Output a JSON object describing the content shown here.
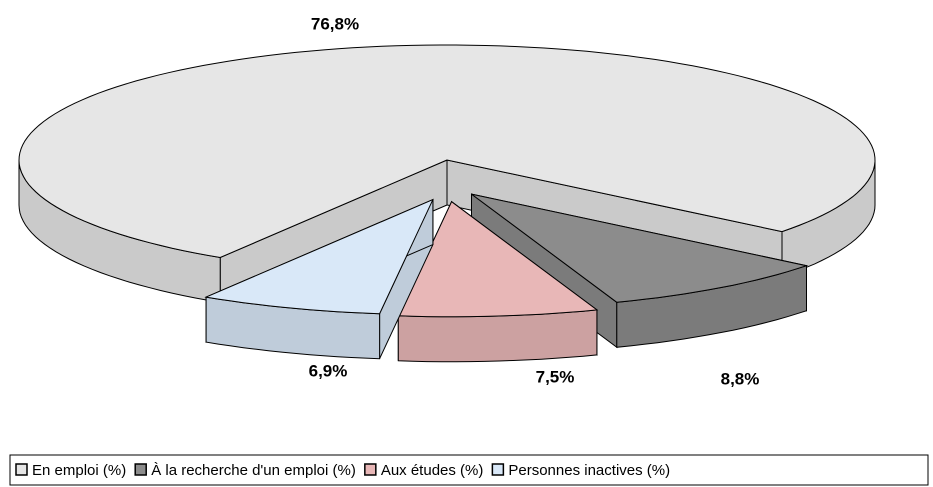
{
  "chart_data": {
    "type": "pie3d",
    "categories": [
      "En emploi (%)",
      "À la recherche d'un emploi (%)",
      "Aux études (%)",
      "Personnes inactives (%)"
    ],
    "values": [
      76.8,
      8.8,
      7.5,
      6.9
    ],
    "value_labels": [
      "76,8%",
      "8,8%",
      "7,5%",
      "6,9%"
    ],
    "colors": [
      "#e6e6e6",
      "#8c8c8c",
      "#e8b7b7",
      "#d9e8f8"
    ],
    "legend": "bottom"
  }
}
